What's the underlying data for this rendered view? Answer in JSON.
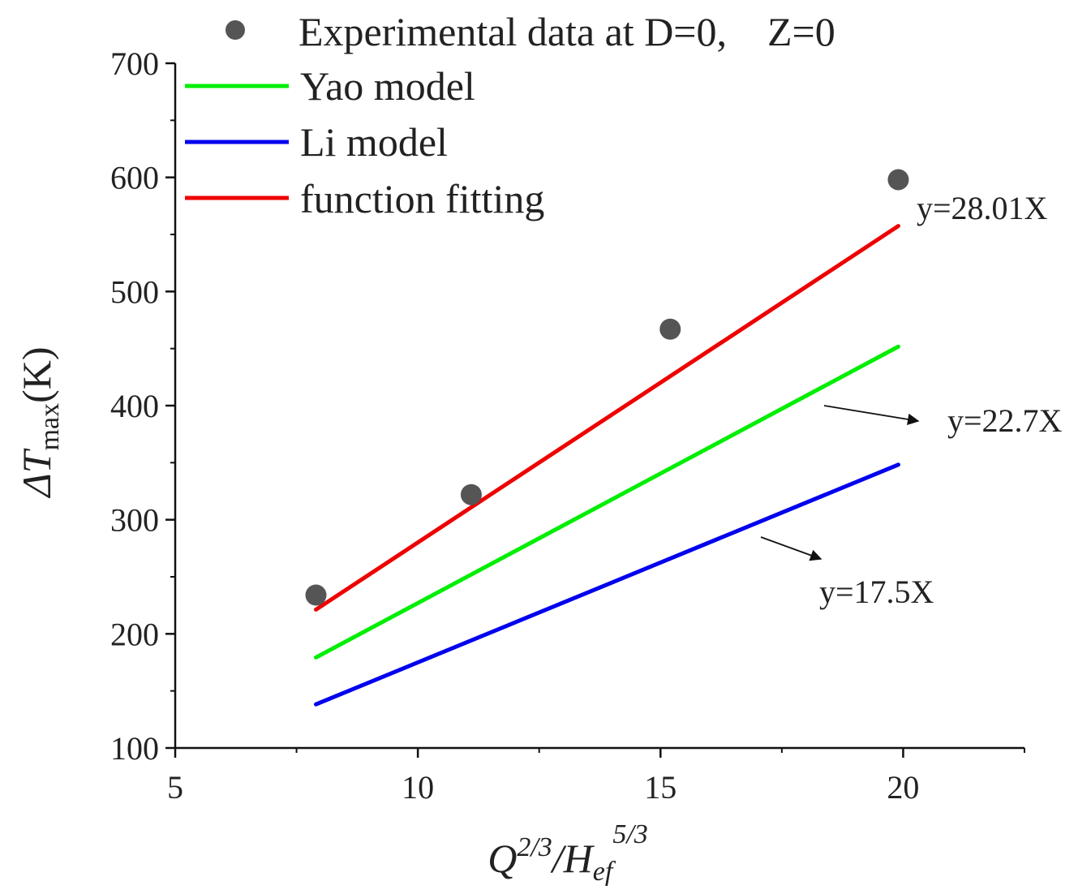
{
  "chart_data": {
    "type": "line",
    "title": "",
    "xlabel": {
      "base": "Q",
      "sup1": "2/3",
      "mid": "/H",
      "sub": "ef",
      "sup2": "5/3"
    },
    "ylabel": {
      "pre": "ΔT",
      "sub": "max",
      "post": "(K)"
    },
    "xlim": [
      5,
      22.5
    ],
    "ylim": [
      100,
      700
    ],
    "xticks": [
      5,
      10,
      15,
      20
    ],
    "yticks": [
      100,
      200,
      300,
      400,
      500,
      600,
      700
    ],
    "grid": false,
    "legend_position": "top",
    "series": [
      {
        "name": "Experimental data at D=0,　Z=0",
        "kind": "scatter",
        "color": "#555555",
        "x": [
          7.9,
          11.1,
          15.2,
          19.9
        ],
        "y": [
          234,
          322,
          467,
          598
        ]
      },
      {
        "name": "Yao model",
        "kind": "line",
        "color": "#00ee00",
        "slope": 22.7,
        "x": [
          7.9,
          19.9
        ]
      },
      {
        "name": "Li model",
        "kind": "line",
        "color": "#0000ee",
        "slope": 17.5,
        "x": [
          7.9,
          19.9
        ]
      },
      {
        "name": "function fitting",
        "kind": "line",
        "color": "#ee0000",
        "slope": 28.01,
        "x": [
          7.9,
          19.9
        ]
      }
    ],
    "annotations": [
      {
        "text": "y=28.01X",
        "arrow": false
      },
      {
        "text": "y=22.7X",
        "arrow": true
      },
      {
        "text": "y=17.5X",
        "arrow": true
      }
    ]
  }
}
